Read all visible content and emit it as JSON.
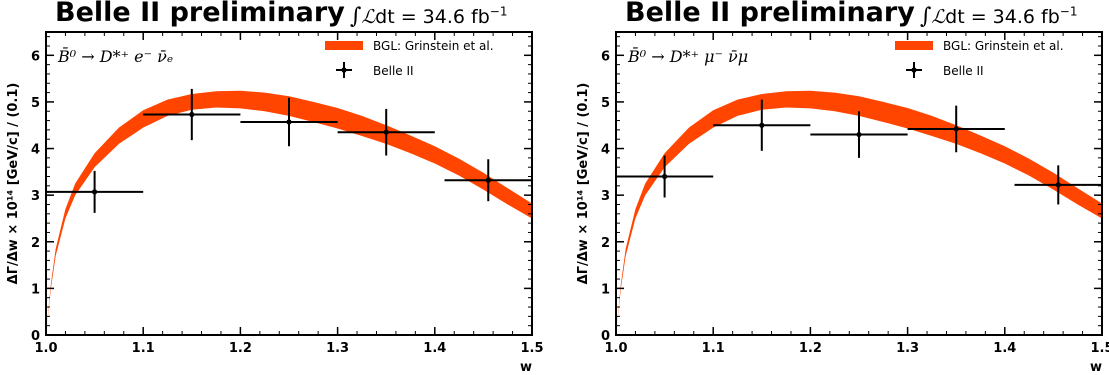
{
  "header": {
    "experiment": "Belle II preliminary",
    "lumi_prefix": "∫",
    "lumi_symbol": "ℒ",
    "lumi_mid": "dt = 34.6 fb",
    "lumi_exp": "−1"
  },
  "chart_data": [
    {
      "type": "scatter",
      "channel": "B̄⁰ → D*⁺ e⁻ ν̄ₑ",
      "xlabel": "w",
      "ylabel": "ΔΓ/Δw × 10¹⁴ [GeV/c] / (0.1)",
      "xlim": [
        1.0,
        1.5
      ],
      "ylim": [
        0,
        6.5
      ],
      "xticks": [
        "1.0",
        "1.1",
        "1.2",
        "1.3",
        "1.4",
        "1.5"
      ],
      "yticks": [
        "0",
        "1",
        "2",
        "3",
        "4",
        "5",
        "6"
      ],
      "legend_position": "top-right",
      "series": [
        {
          "name": "BGL: Grinstein et al.",
          "kind": "band",
          "color": "#ff4500",
          "x": [
            1.0,
            1.005,
            1.01,
            1.02,
            1.03,
            1.05,
            1.075,
            1.1,
            1.125,
            1.15,
            1.175,
            1.2,
            1.225,
            1.25,
            1.275,
            1.3,
            1.325,
            1.35,
            1.375,
            1.4,
            1.425,
            1.45,
            1.475,
            1.5
          ],
          "lower": [
            0,
            1.0,
            1.7,
            2.5,
            3.0,
            3.6,
            4.1,
            4.45,
            4.7,
            4.83,
            4.88,
            4.86,
            4.8,
            4.7,
            4.57,
            4.43,
            4.27,
            4.1,
            3.9,
            3.68,
            3.42,
            3.12,
            2.8,
            2.5
          ],
          "upper": [
            0,
            1.1,
            1.85,
            2.7,
            3.25,
            3.9,
            4.45,
            4.82,
            5.05,
            5.17,
            5.23,
            5.24,
            5.2,
            5.12,
            5.0,
            4.87,
            4.7,
            4.5,
            4.28,
            4.05,
            3.78,
            3.48,
            3.15,
            2.82
          ]
        },
        {
          "name": "Belle II",
          "kind": "errorbar",
          "color": "#000000",
          "x": [
            1.05,
            1.15,
            1.25,
            1.35,
            1.455
          ],
          "xerr": [
            0.05,
            0.05,
            0.05,
            0.05,
            0.045
          ],
          "y": [
            3.07,
            4.73,
            4.57,
            4.35,
            3.32
          ],
          "yerr": [
            0.45,
            0.55,
            0.52,
            0.5,
            0.45
          ]
        }
      ]
    },
    {
      "type": "scatter",
      "channel": "B̄⁰ → D*⁺ μ⁻ ν̄μ",
      "xlabel": "w",
      "ylabel": "ΔΓ/Δw × 10¹⁴ [GeV/c] / (0.1)",
      "xlim": [
        1.0,
        1.5
      ],
      "ylim": [
        0,
        6.5
      ],
      "xticks": [
        "1.0",
        "1.1",
        "1.2",
        "1.3",
        "1.4",
        "1.5"
      ],
      "yticks": [
        "0",
        "1",
        "2",
        "3",
        "4",
        "5",
        "6"
      ],
      "legend_position": "top-right",
      "series": [
        {
          "name": "BGL: Grinstein et al.",
          "kind": "band",
          "color": "#ff4500",
          "x": [
            1.0,
            1.005,
            1.01,
            1.02,
            1.03,
            1.05,
            1.075,
            1.1,
            1.125,
            1.15,
            1.175,
            1.2,
            1.225,
            1.25,
            1.275,
            1.3,
            1.325,
            1.35,
            1.375,
            1.4,
            1.425,
            1.45,
            1.475,
            1.5
          ],
          "lower": [
            0,
            1.0,
            1.7,
            2.5,
            3.0,
            3.6,
            4.1,
            4.45,
            4.7,
            4.83,
            4.88,
            4.86,
            4.8,
            4.7,
            4.57,
            4.43,
            4.27,
            4.1,
            3.9,
            3.68,
            3.42,
            3.12,
            2.8,
            2.5
          ],
          "upper": [
            0,
            1.1,
            1.85,
            2.7,
            3.25,
            3.9,
            4.45,
            4.82,
            5.05,
            5.17,
            5.23,
            5.24,
            5.2,
            5.12,
            5.0,
            4.87,
            4.7,
            4.5,
            4.28,
            4.05,
            3.78,
            3.48,
            3.15,
            2.82
          ]
        },
        {
          "name": "Belle II",
          "kind": "errorbar",
          "color": "#000000",
          "x": [
            1.05,
            1.15,
            1.25,
            1.35,
            1.455
          ],
          "xerr": [
            0.05,
            0.05,
            0.05,
            0.05,
            0.045
          ],
          "y": [
            3.4,
            4.5,
            4.3,
            4.42,
            3.22
          ],
          "yerr": [
            0.45,
            0.55,
            0.5,
            0.5,
            0.42
          ]
        }
      ]
    }
  ]
}
